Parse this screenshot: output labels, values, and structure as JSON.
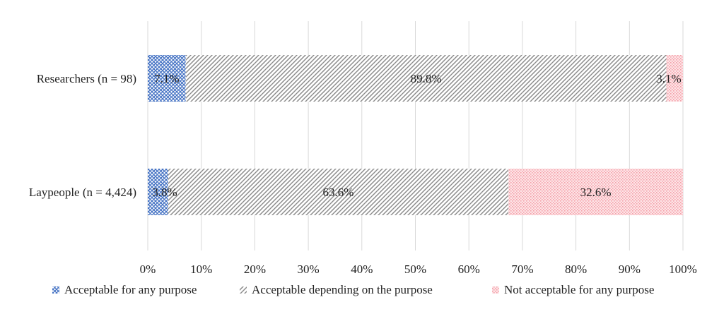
{
  "chart_data": {
    "type": "bar",
    "stacked": true,
    "orientation": "horizontal",
    "categories": [
      "Researchers (n = 98)",
      "Laypeople (n = 4,424)"
    ],
    "series": [
      {
        "name": "Acceptable for any purpose",
        "values": [
          7.1,
          3.8
        ],
        "labels": [
          "7.1%",
          "3.8%"
        ],
        "color": "#4472c4",
        "pattern": "crosshatch"
      },
      {
        "name": "Acceptable depending on the purpose",
        "values": [
          89.8,
          63.6
        ],
        "labels": [
          "89.8%",
          "63.6%"
        ],
        "color": "#7f7f7f",
        "pattern": "diagonal"
      },
      {
        "name": "Not acceptable for any purpose",
        "values": [
          3.1,
          32.6
        ],
        "labels": [
          "3.1%",
          "32.6%"
        ],
        "color": "#f4a0a8",
        "pattern": "dots"
      }
    ],
    "xlim": [
      0,
      100
    ],
    "xticks": [
      "0%",
      "10%",
      "20%",
      "30%",
      "40%",
      "50%",
      "60%",
      "70%",
      "80%",
      "90%",
      "100%"
    ],
    "grid": true,
    "legend": "bottom"
  }
}
